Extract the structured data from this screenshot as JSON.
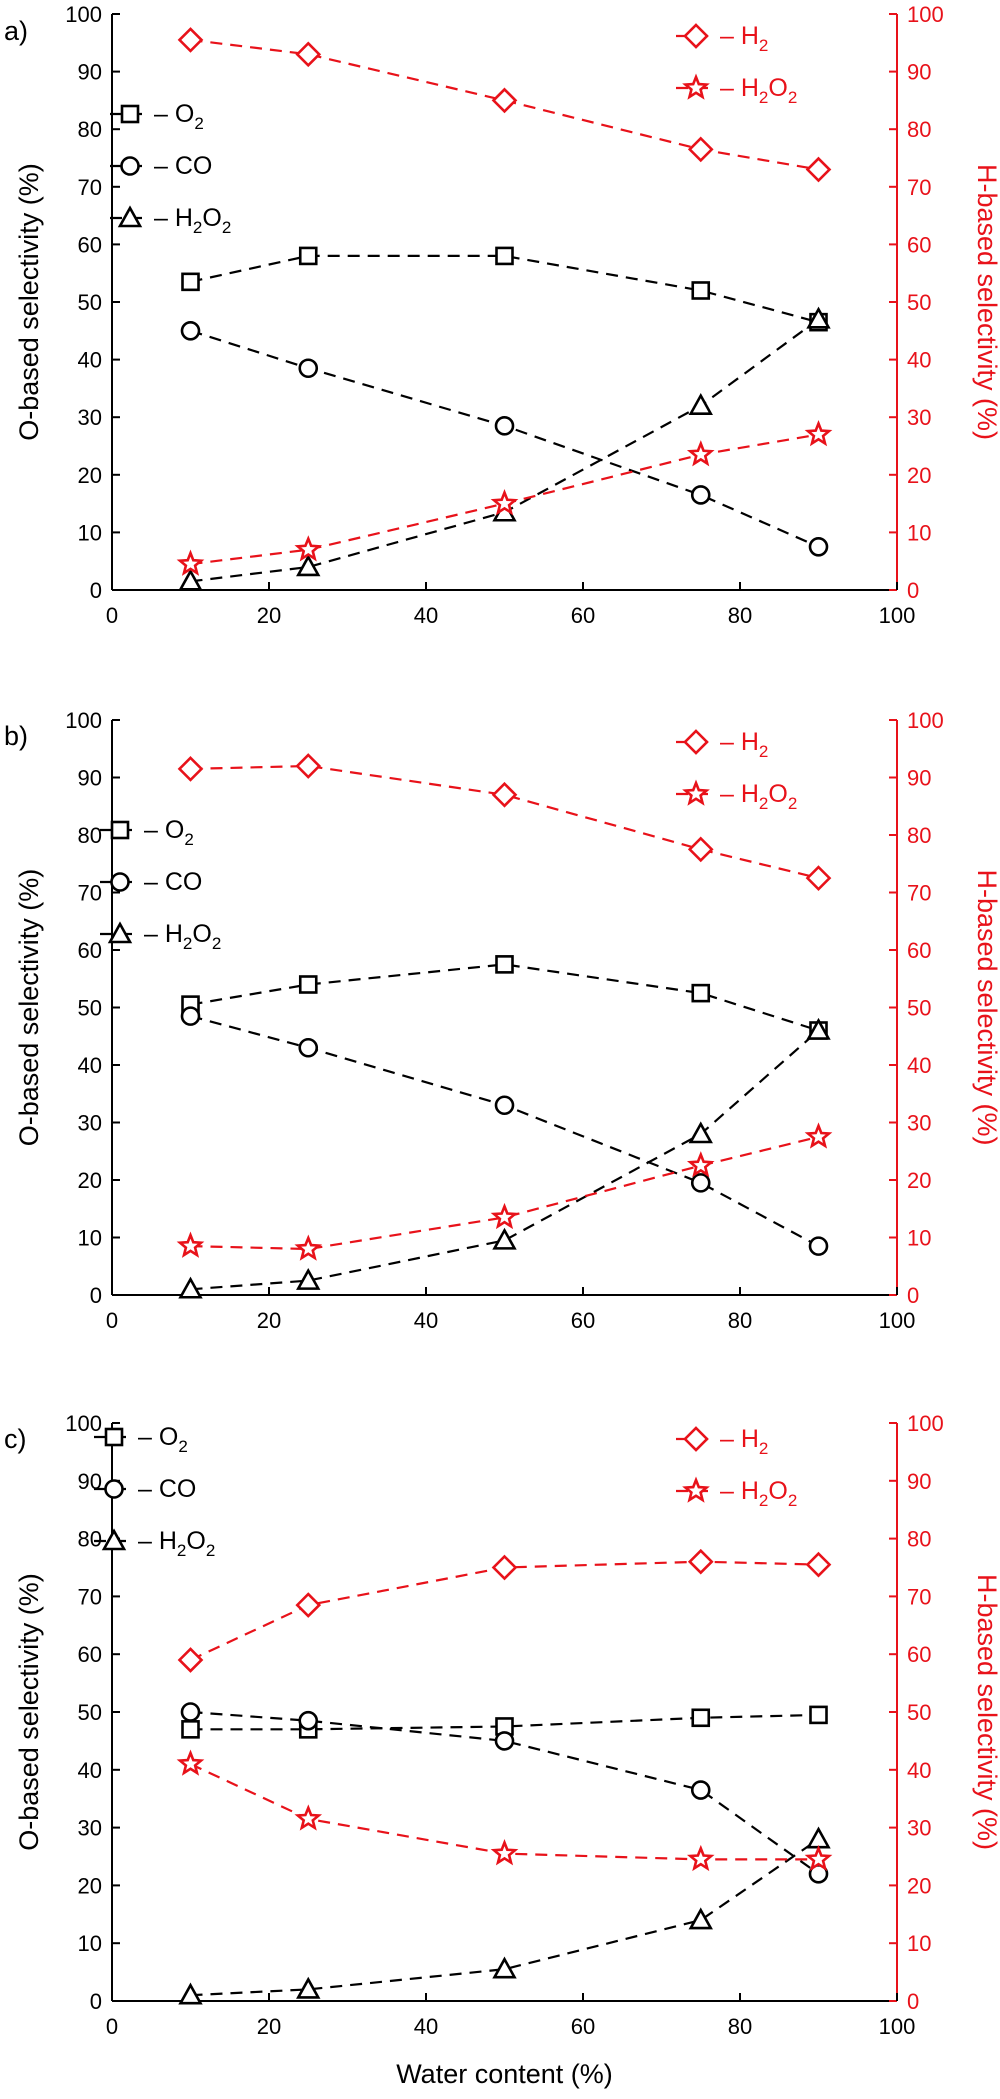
{
  "chart_data": [
    {
      "type": "line",
      "panel_label": "a)",
      "xlabel": "",
      "ylabel_left": "O-based selectivity (%)",
      "ylabel_right": "H-based selectivity (%)",
      "xlim": [
        0,
        100
      ],
      "ylim_left": [
        0,
        100
      ],
      "ylim_right": [
        0,
        100
      ],
      "x_ticks": [
        "0",
        "20",
        "40",
        "60",
        "80",
        "100"
      ],
      "y_ticks": [
        "0",
        "10",
        "20",
        "30",
        "40",
        "50",
        "60",
        "70",
        "80",
        "90",
        "100"
      ],
      "x": [
        10,
        25,
        50,
        75,
        90
      ],
      "series": [
        {
          "name": "O2",
          "axis": "left",
          "marker": "square",
          "color": "#000000",
          "values": [
            53.5,
            58,
            58,
            52,
            46.5
          ]
        },
        {
          "name": "CO",
          "axis": "left",
          "marker": "circle",
          "color": "#000000",
          "values": [
            45,
            38.5,
            28.5,
            16.5,
            7.5
          ]
        },
        {
          "name": "H2O2",
          "axis": "left",
          "marker": "triangle",
          "color": "#000000",
          "values": [
            1.5,
            4,
            13.5,
            32,
            47
          ]
        },
        {
          "name": "H2",
          "axis": "right",
          "marker": "diamond",
          "color": "#e8121a",
          "values": [
            95.5,
            93,
            85,
            76.5,
            73
          ]
        },
        {
          "name": "H2O2",
          "axis": "right",
          "marker": "star",
          "color": "#e8121a",
          "values": [
            4.5,
            7,
            15,
            23.5,
            27
          ]
        }
      ]
    },
    {
      "type": "line",
      "panel_label": "b)",
      "xlabel": "",
      "ylabel_left": "O-based selectivity (%)",
      "ylabel_right": "H-based selectivity (%)",
      "xlim": [
        0,
        100
      ],
      "ylim_left": [
        0,
        100
      ],
      "ylim_right": [
        0,
        100
      ],
      "x_ticks": [
        "0",
        "20",
        "40",
        "60",
        "80",
        "100"
      ],
      "y_ticks": [
        "0",
        "10",
        "20",
        "30",
        "40",
        "50",
        "60",
        "70",
        "80",
        "90",
        "100"
      ],
      "x": [
        10,
        25,
        50,
        75,
        90
      ],
      "series": [
        {
          "name": "O2",
          "axis": "left",
          "marker": "square",
          "color": "#000000",
          "values": [
            50.5,
            54,
            57.5,
            52.5,
            46
          ]
        },
        {
          "name": "CO",
          "axis": "left",
          "marker": "circle",
          "color": "#000000",
          "values": [
            48.5,
            43,
            33,
            19.5,
            8.5
          ]
        },
        {
          "name": "H2O2",
          "axis": "left",
          "marker": "triangle",
          "color": "#000000",
          "values": [
            1,
            2.5,
            9.5,
            28,
            46
          ]
        },
        {
          "name": "H2",
          "axis": "right",
          "marker": "diamond",
          "color": "#e8121a",
          "values": [
            91.5,
            92,
            87,
            77.5,
            72.5
          ]
        },
        {
          "name": "H2O2",
          "axis": "right",
          "marker": "star",
          "color": "#e8121a",
          "values": [
            8.5,
            8,
            13.5,
            22.5,
            27.5
          ]
        }
      ]
    },
    {
      "type": "line",
      "panel_label": "c)",
      "xlabel": "Water content (%)",
      "ylabel_left": "O-based selectivity (%)",
      "ylabel_right": "H-based selectivity (%)",
      "xlim": [
        0,
        100
      ],
      "ylim_left": [
        0,
        100
      ],
      "ylim_right": [
        0,
        100
      ],
      "x_ticks": [
        "0",
        "20",
        "40",
        "60",
        "80",
        "100"
      ],
      "y_ticks": [
        "0",
        "10",
        "20",
        "30",
        "40",
        "50",
        "60",
        "70",
        "80",
        "90",
        "100"
      ],
      "x": [
        10,
        25,
        50,
        75,
        90
      ],
      "series": [
        {
          "name": "O2",
          "axis": "left",
          "marker": "square",
          "color": "#000000",
          "values": [
            47,
            47,
            47.5,
            49,
            49.5
          ]
        },
        {
          "name": "CO",
          "axis": "left",
          "marker": "circle",
          "color": "#000000",
          "values": [
            50,
            48.5,
            45,
            36.5,
            22
          ]
        },
        {
          "name": "H2O2",
          "axis": "left",
          "marker": "triangle",
          "color": "#000000",
          "values": [
            1,
            2,
            5.5,
            14,
            28
          ]
        },
        {
          "name": "H2",
          "axis": "right",
          "marker": "diamond",
          "color": "#e8121a",
          "values": [
            59,
            68.5,
            75,
            76,
            75.5
          ]
        },
        {
          "name": "H2O2",
          "axis": "right",
          "marker": "star",
          "color": "#e8121a",
          "values": [
            41,
            31.5,
            25.5,
            24.5,
            24.5
          ]
        }
      ]
    }
  ],
  "legend_labels": {
    "O2": {
      "main": "O",
      "sub": "2",
      "after": ""
    },
    "CO": {
      "main": "CO",
      "sub": "",
      "after": ""
    },
    "H2O2": {
      "main": "H",
      "sub": "2",
      "after": "O",
      "sub2": "2"
    },
    "H2": {
      "main": "H",
      "sub": "2",
      "after": ""
    }
  },
  "colors": {
    "black": "#000000",
    "red": "#e8121a"
  }
}
